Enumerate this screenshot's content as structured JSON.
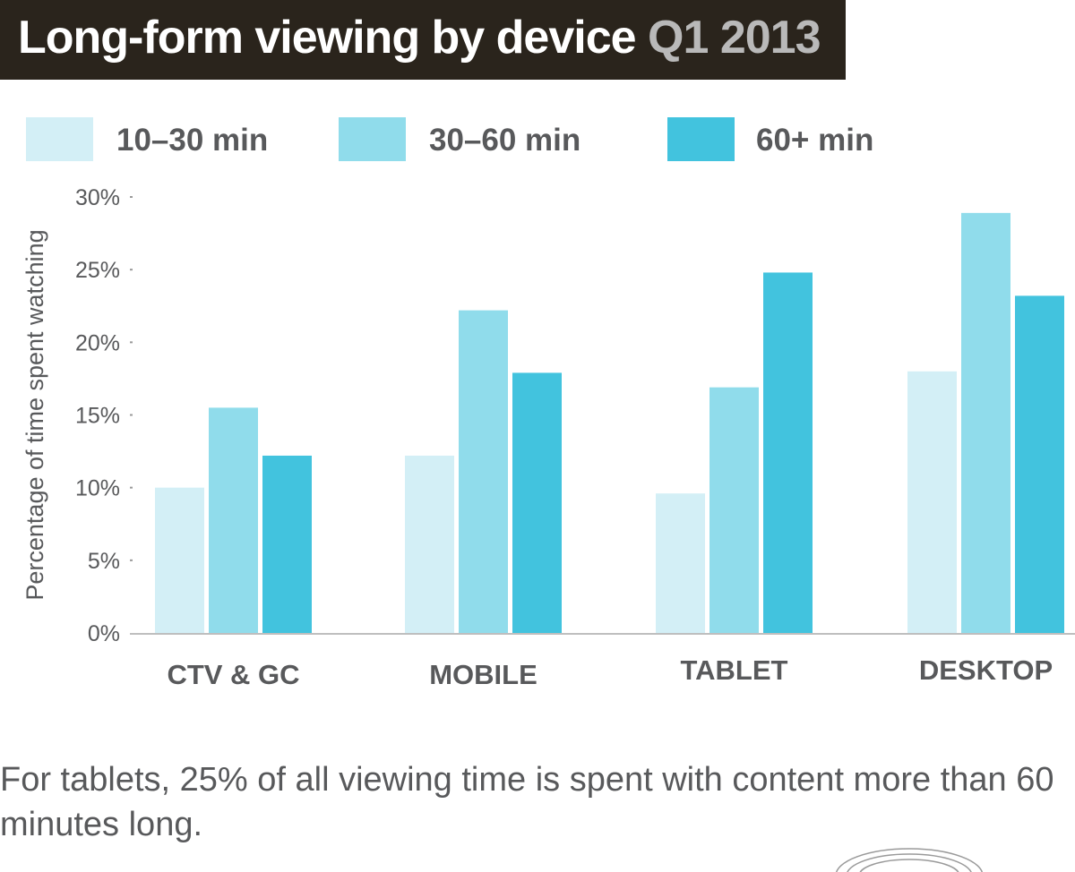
{
  "title": {
    "main": "Long-form viewing by device",
    "accent": "Q1 2013"
  },
  "colors": {
    "s1": "#d3eff6",
    "s2": "#90dceb",
    "s3": "#42c3de",
    "title_bg": "#2a241c",
    "text": "#58595b"
  },
  "chart_data": {
    "type": "bar",
    "title": "Long-form viewing by device Q1 2013",
    "categories": [
      "CTV & GC",
      "MOBILE",
      "TABLET",
      "DESKTOP"
    ],
    "series": [
      {
        "name": "10–30 min",
        "values": [
          10,
          12.2,
          9.6,
          18
        ]
      },
      {
        "name": "30–60 min",
        "values": [
          15.5,
          22.2,
          16.9,
          28.9
        ]
      },
      {
        "name": "60+ min",
        "values": [
          12.2,
          17.9,
          24.8,
          23.2
        ]
      }
    ],
    "ylabel": "Percentage of time spent watching",
    "ylim": [
      0,
      30
    ],
    "yticks": [
      0,
      5,
      10,
      15,
      20,
      25,
      30
    ],
    "ytick_labels": [
      "0%",
      "5%",
      "10%",
      "15%",
      "20%",
      "25%",
      "30%"
    ],
    "grid": false,
    "legend": "top"
  },
  "footnote": "For tablets, 25% of all viewing time is spent with content more than 60 minutes long."
}
